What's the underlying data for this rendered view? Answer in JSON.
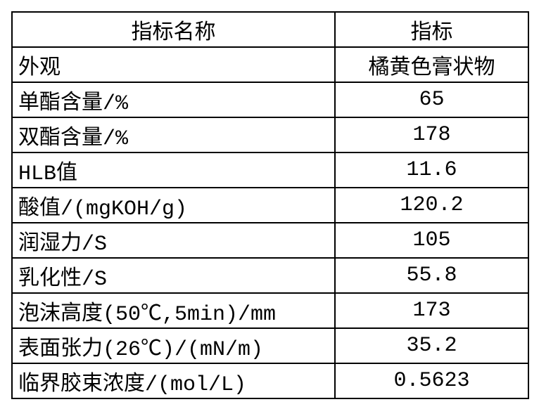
{
  "table": {
    "header": [
      "指标名称",
      "指标"
    ],
    "rows": [
      [
        "外观",
        "橘黄色膏状物"
      ],
      [
        "单酯含量/%",
        "65"
      ],
      [
        "双酯含量/%",
        "178"
      ],
      [
        "HLB值",
        "11.6"
      ],
      [
        "酸值/(mgKOH/g)",
        "120.2"
      ],
      [
        "润湿力/S",
        "105"
      ],
      [
        "乳化性/S",
        "55.8"
      ],
      [
        "泡沫高度(50℃,5min)/mm",
        "173"
      ],
      [
        "表面张力(26℃)/(mN/m)",
        "35.2"
      ],
      [
        "临界胶束浓度/(mol/L)",
        "0.5623"
      ]
    ]
  }
}
